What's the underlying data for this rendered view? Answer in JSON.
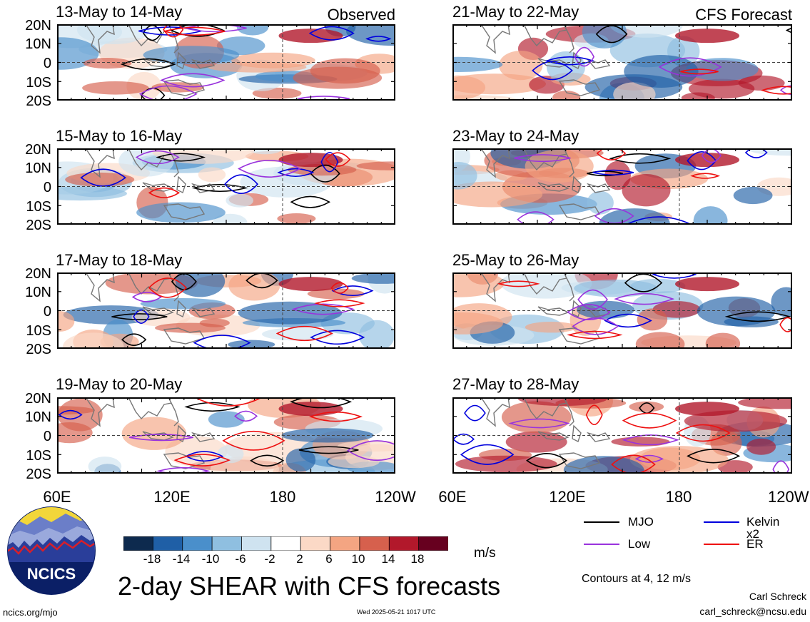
{
  "figure": {
    "title": "2-day SHEAR with CFS forecasts",
    "observed_label": "Observed",
    "forecast_label": "CFS Forecast",
    "units": "m/s",
    "contours_note": "Contours at 4, 12 m/s",
    "credit_name": "Carl Schreck",
    "credit_email": "carl_schreck@ncsu.edu",
    "site": "ncics.org/mjo",
    "timestamp": "Wed 2025-05-21 1017 UTC",
    "logo_text": "NCICS"
  },
  "panels": [
    {
      "title": "13-May to 14-May",
      "kind": "observed"
    },
    {
      "title": "15-May to 16-May",
      "kind": "observed"
    },
    {
      "title": "17-May to 18-May",
      "kind": "observed"
    },
    {
      "title": "19-May to 20-May",
      "kind": "observed"
    },
    {
      "title": "21-May to 22-May",
      "kind": "forecast"
    },
    {
      "title": "23-May to 24-May",
      "kind": "forecast"
    },
    {
      "title": "25-May to 26-May",
      "kind": "forecast"
    },
    {
      "title": "27-May to 28-May",
      "kind": "forecast"
    }
  ],
  "axes": {
    "y_ticks": [
      "20N",
      "10N",
      "0",
      "10S",
      "20S"
    ],
    "x_ticks": [
      "60E",
      "120E",
      "180",
      "120W"
    ]
  },
  "colorbar": {
    "labels": [
      "-18",
      "-14",
      "-10",
      "-6",
      "-2",
      "2",
      "6",
      "10",
      "14",
      "18"
    ],
    "colors": [
      "#0d2a4e",
      "#1f5fa6",
      "#4a8fcb",
      "#8fbfe0",
      "#cfe3f0",
      "#ffffff",
      "#fbd9c6",
      "#f4a582",
      "#d6604d",
      "#b2182b",
      "#67001f"
    ]
  },
  "legend": [
    {
      "label": "MJO",
      "color": "#000000"
    },
    {
      "label": "Kelvin x2",
      "color": "#0000dd"
    },
    {
      "label": "Low",
      "color": "#9933dd"
    },
    {
      "label": "ER",
      "color": "#ee1111"
    }
  ],
  "chart_data": [
    {
      "type": "heatmap",
      "title": "13-May to 14-May",
      "corner_label": "Observed",
      "x_ticks": [
        "60E",
        "120E",
        "180",
        "120W"
      ],
      "y_ticks": [
        "20N",
        "10N",
        "0",
        "10S",
        "20S"
      ],
      "units": "m/s"
    },
    {
      "type": "heatmap",
      "title": "15-May to 16-May",
      "x_ticks": [
        "60E",
        "120E",
        "180",
        "120W"
      ],
      "y_ticks": [
        "20N",
        "10N",
        "0",
        "10S",
        "20S"
      ],
      "units": "m/s"
    },
    {
      "type": "heatmap",
      "title": "17-May to 18-May",
      "x_ticks": [
        "60E",
        "120E",
        "180",
        "120W"
      ],
      "y_ticks": [
        "20N",
        "10N",
        "0",
        "10S",
        "20S"
      ],
      "units": "m/s"
    },
    {
      "type": "heatmap",
      "title": "19-May to 20-May",
      "x_ticks": [
        "60E",
        "120E",
        "180",
        "120W"
      ],
      "y_ticks": [
        "20N",
        "10N",
        "0",
        "10S",
        "20S"
      ],
      "units": "m/s"
    },
    {
      "type": "heatmap",
      "title": "21-May to 22-May",
      "corner_label": "CFS Forecast",
      "x_ticks": [
        "60E",
        "120E",
        "180",
        "120W"
      ],
      "y_ticks": [
        "20N",
        "10N",
        "0",
        "10S",
        "20S"
      ],
      "units": "m/s"
    },
    {
      "type": "heatmap",
      "title": "23-May to 24-May",
      "x_ticks": [
        "60E",
        "120E",
        "180",
        "120W"
      ],
      "y_ticks": [
        "20N",
        "10N",
        "0",
        "10S",
        "20S"
      ],
      "units": "m/s"
    },
    {
      "type": "heatmap",
      "title": "25-May to 26-May",
      "x_ticks": [
        "60E",
        "120E",
        "180",
        "120W"
      ],
      "y_ticks": [
        "20N",
        "10N",
        "0",
        "10S",
        "20S"
      ],
      "units": "m/s"
    },
    {
      "type": "heatmap",
      "title": "27-May to 28-May",
      "x_ticks": [
        "60E",
        "120E",
        "180",
        "120W"
      ],
      "y_ticks": [
        "20N",
        "10N",
        "0",
        "10S",
        "20S"
      ],
      "units": "m/s"
    }
  ]
}
